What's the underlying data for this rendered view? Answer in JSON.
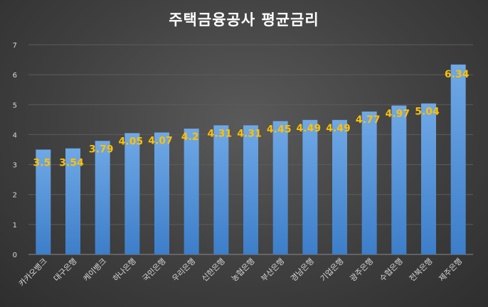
{
  "chart_data": {
    "type": "bar",
    "title": "주택금융공사 평균금리",
    "categories": [
      "카카오뱅크",
      "대구은행",
      "케이뱅크",
      "하나은행",
      "국민은행",
      "우리은행",
      "신한은행",
      "농협은행",
      "부산은행",
      "경남은행",
      "기업은행",
      "광주은행",
      "수협은행",
      "전북은행",
      "제주은행"
    ],
    "values": [
      3.5,
      3.54,
      3.79,
      4.05,
      4.07,
      4.2,
      4.31,
      4.31,
      4.45,
      4.49,
      4.49,
      4.77,
      4.97,
      5.04,
      6.34
    ],
    "data_labels": [
      "3.5",
      "3.54",
      "3.79",
      "4.05",
      "4.07",
      "4.2",
      "4.31",
      "4.31",
      "4.45",
      "4.49",
      "4.49",
      "4.77",
      "4.97",
      "5.04",
      "6.34"
    ],
    "y_ticks": [
      "0",
      "1",
      "2",
      "3",
      "4",
      "5",
      "6",
      "7"
    ],
    "ylim": [
      0,
      7
    ],
    "grid": true,
    "legend": "none",
    "colors": {
      "bar_top": "#6fa8e6",
      "bar_bottom": "#3d7ec9",
      "label": "#ffc000"
    }
  }
}
